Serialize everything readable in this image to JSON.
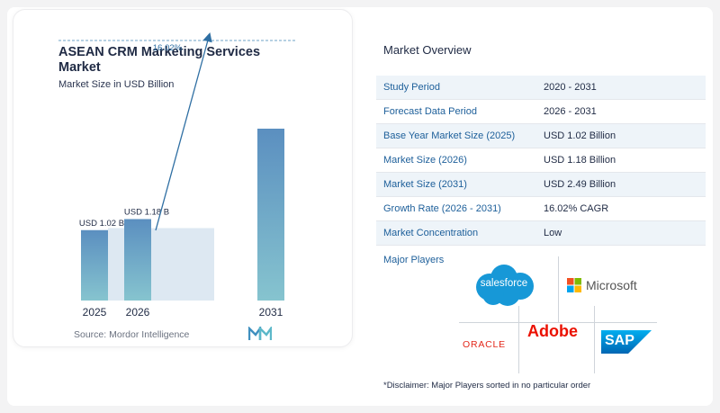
{
  "chart": {
    "title": "ASEAN CRM Marketing Services Market",
    "subtitle": "Market Size in USD Billion",
    "source": "Source:  Mordor Intelligence",
    "cagr_label": "16.02%",
    "colors": {
      "bar_top": "#5b8fc0",
      "bar_bottom": "#86c4cf",
      "band": "#dde8f2",
      "line": "#2f6fa3"
    }
  },
  "chart_data": {
    "type": "bar",
    "categories": [
      "2025",
      "2026",
      "2031"
    ],
    "values": [
      1.02,
      1.18,
      2.49
    ],
    "data_labels": [
      "USD 1.02 B",
      "USD 1.18 B",
      ""
    ],
    "title": "ASEAN CRM Marketing Services Market",
    "ylabel": "Market Size in USD Billion",
    "annotations": [
      "16.02%"
    ],
    "grid": false,
    "ylim": [
      0,
      2.49
    ]
  },
  "overview": {
    "title": "Market Overview",
    "rows": [
      {
        "label": "Study Period",
        "value": "2020 - 2031"
      },
      {
        "label": "Forecast Data Period",
        "value": "2026 - 2031"
      },
      {
        "label": "Base Year Market Size (2025)",
        "value": "USD 1.02 Billion"
      },
      {
        "label": "Market Size (2026)",
        "value": "USD 1.18 Billion"
      },
      {
        "label": "Market Size (2031)",
        "value": "USD 2.49 Billion"
      },
      {
        "label": "Growth Rate (2026 - 2031)",
        "value": "16.02% CAGR"
      },
      {
        "label": "Market Concentration",
        "value": "Low"
      }
    ]
  },
  "players": {
    "title": "Major Players",
    "logos": {
      "salesforce": "salesforce",
      "microsoft": "Microsoft",
      "oracle": "ORACLE",
      "adobe": "Adobe",
      "sap": "SAP"
    }
  },
  "disclaimer": "*Disclaimer: Major Players sorted in no particular order"
}
